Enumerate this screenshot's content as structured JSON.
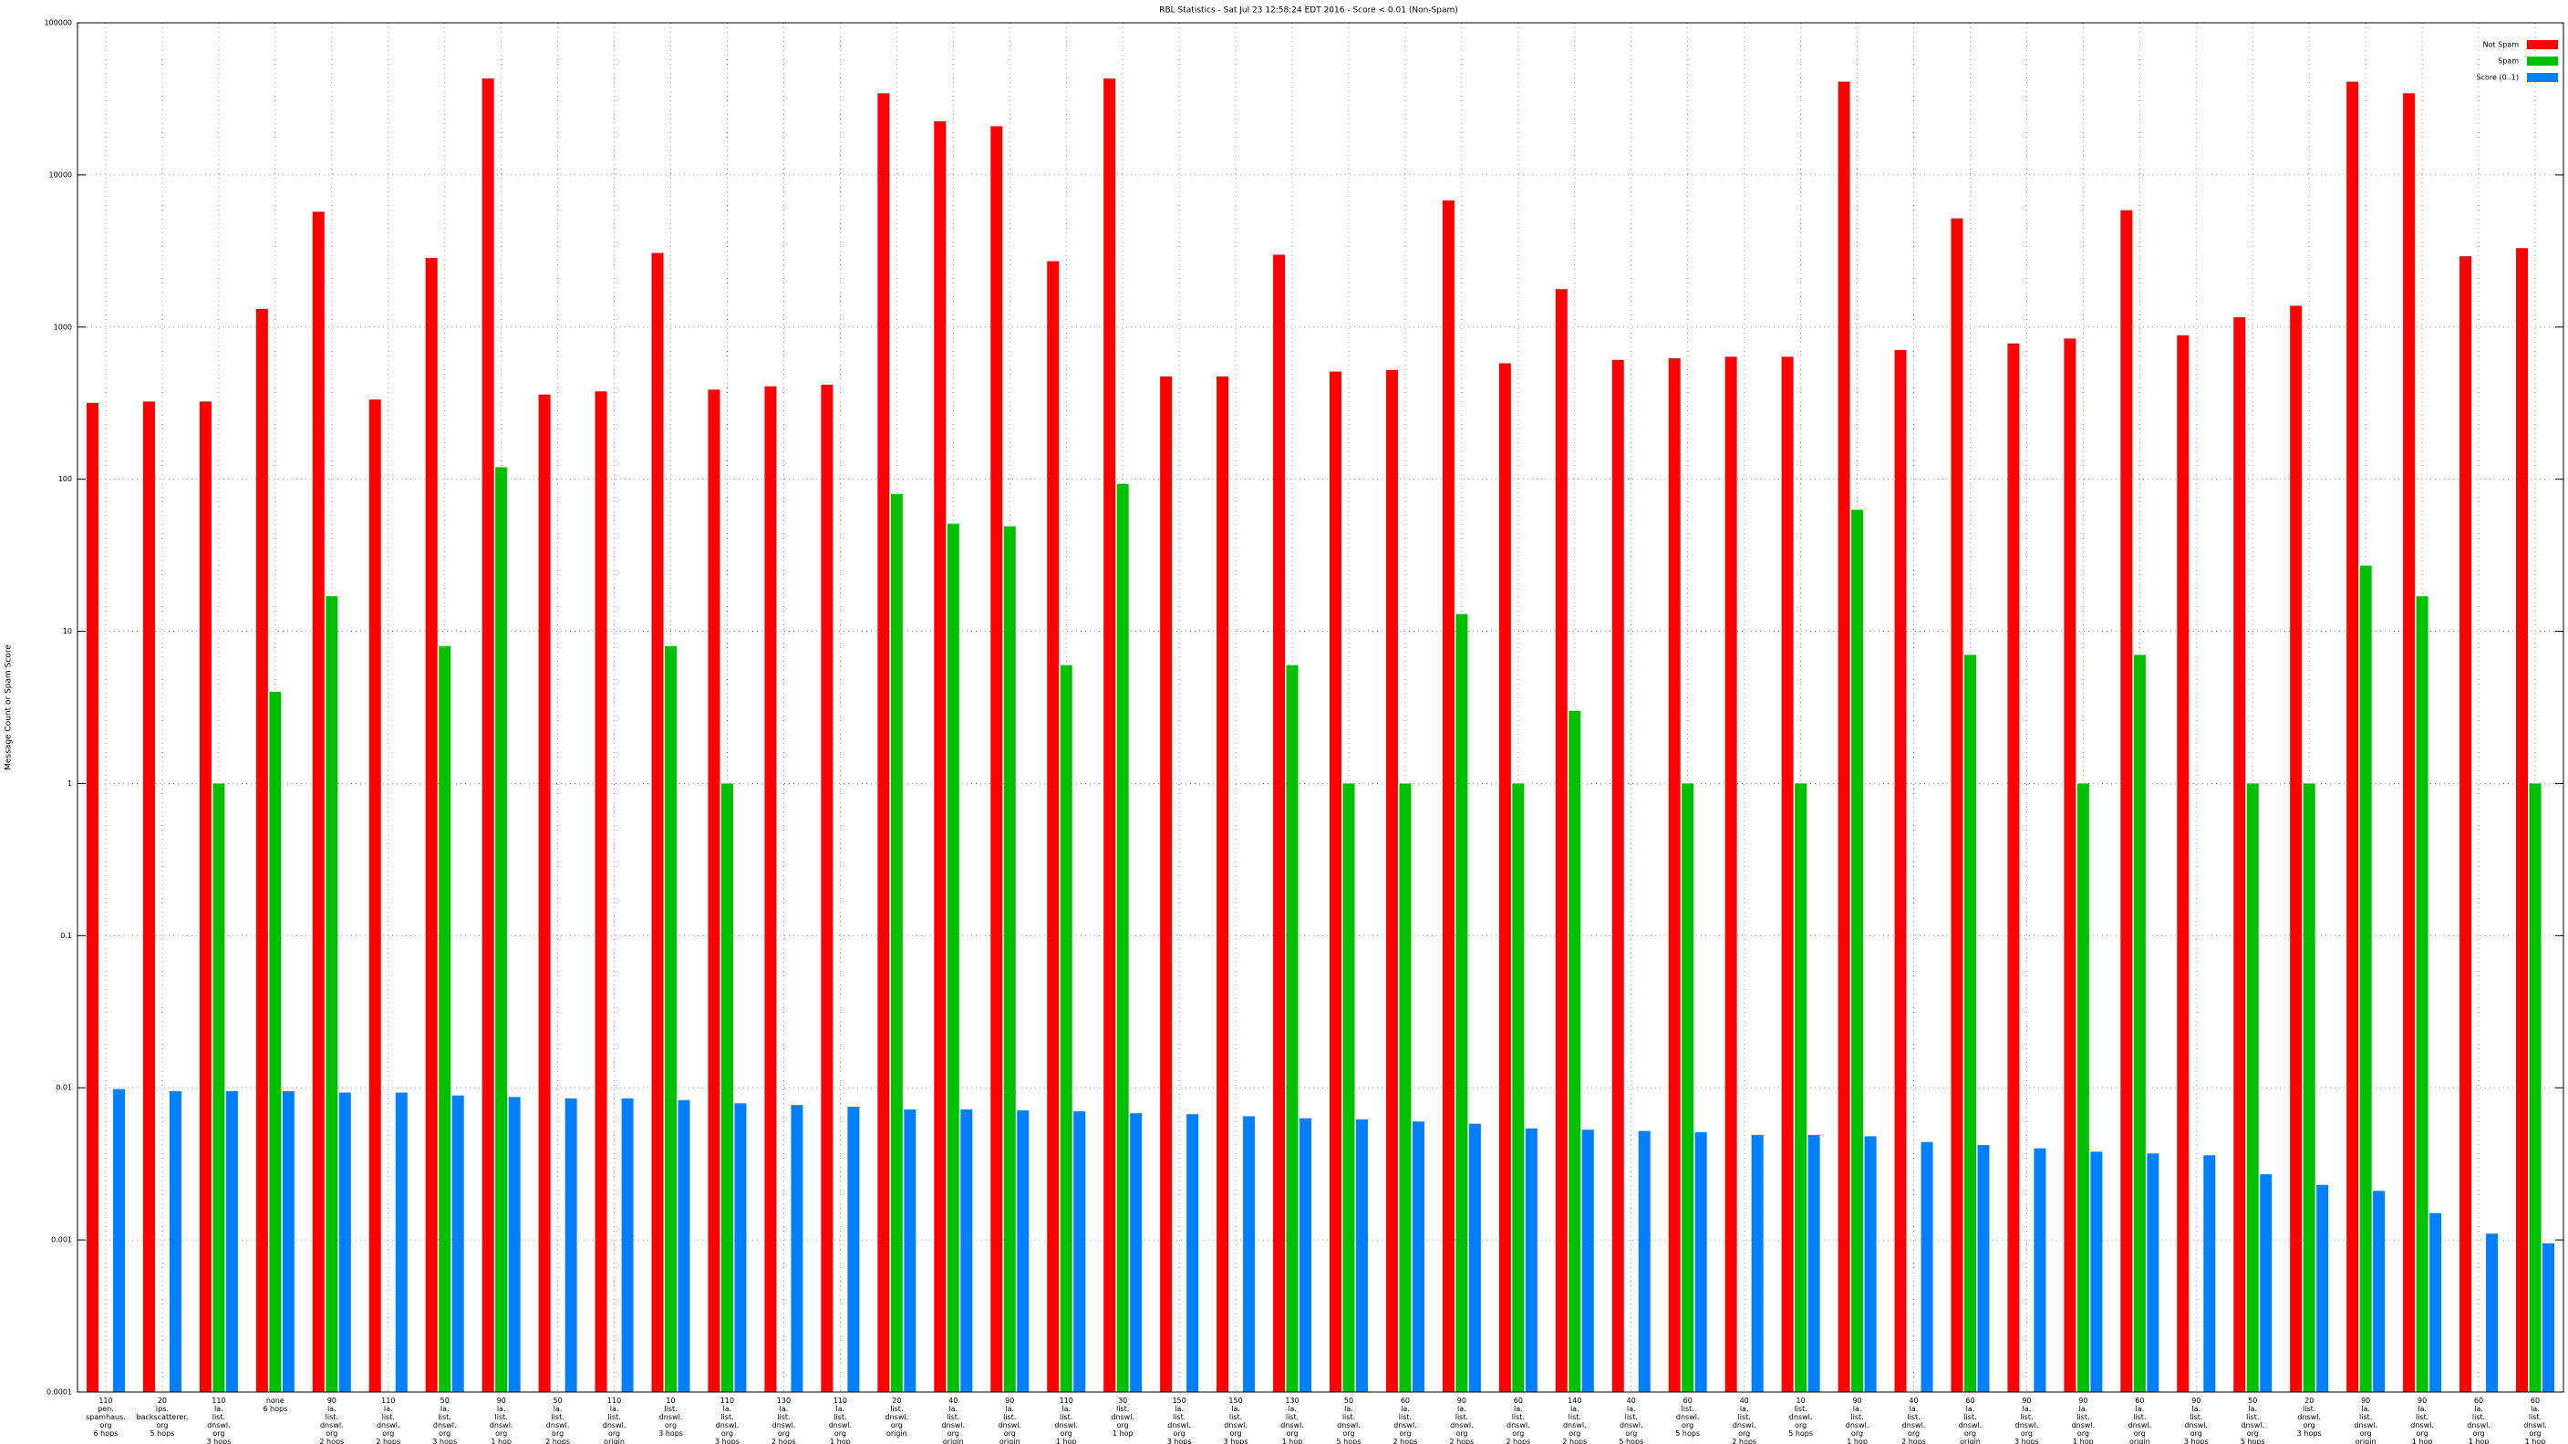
{
  "chart_data": {
    "type": "bar",
    "title": "RBL Statistics - Sat Jul 23 12:58:24 EDT 2016 - Score < 0.01 (Non-Spam)",
    "y_label": "Message Count or Spam Score",
    "categories": [
      "110\npen.\nspamhaus.\norg\n6 hops",
      "20\nips.\nbackscatterer.\norg\n5 hops",
      "110\nla.\nlist.\ndnswl.\norg\n3 hops",
      "none\n6 hops",
      "90\nla.\nlist.\ndnswl.\norg\n2 hops",
      "110\nla.\nlist.\ndnswl.\norg\n2 hops",
      "50\nla.\nlist.\ndnswl.\norg\n3 hops",
      "90\nla.\nlist.\ndnswl.\norg\n1 hop",
      "50\nla.\nlist.\ndnswl.\norg\n2 hops",
      "110\nla.\nlist.\ndnswl.\norg\norigin",
      "10\nlist.\ndnswl.\norg\n3 hops",
      "110\nla.\nlist.\ndnswl.\norg\n3 hops",
      "130\nla.\nlist.\ndnswl.\norg\n2 hops",
      "110\nla.\nlist.\ndnswl.\norg\n1 hop",
      "20\nlist.\ndnswl.\norg\norigin",
      "40\nla.\nlist.\ndnswl.\norg\norigin",
      "90\nla.\nlist.\ndnswl.\norg\norigin",
      "110\nla.\nlist.\ndnswl.\norg\n1 hop",
      "30\nlist.\ndnswl.\norg\n1 hop",
      "150\nla.\nlist.\ndnswl.\norg\n3 hops",
      "150\nla.\nlist.\ndnswl.\norg\n3 hops",
      "130\nla.\nlist.\ndnswl.\norg\n1 hop",
      "50\nla.\nlist.\ndnswl.\norg\n5 hops",
      "60\nla.\nlist.\ndnswl.\norg\n2 hops",
      "90\nla.\nlist.\ndnswl.\norg\n2 hops",
      "60\nla.\nlist.\ndnswl.\norg\n2 hops",
      "140\nla.\nlist.\ndnswl.\norg\n2 hops",
      "40\nla.\nlist.\ndnswl.\norg\n5 hops",
      "60\nlist.\ndnswl.\norg\n5 hops",
      "40\nla.\nlist.\ndnswl.\norg\n2 hops",
      "10\nlist.\ndnswl.\norg\n5 hops",
      "90\nla.\nlist.\ndnswl.\norg\n1 hop",
      "40\nla.\nlist.\ndnswl.\norg\n2 hops",
      "60\nla.\nlist.\ndnswl.\norg\norigin",
      "90\nla.\nlist.\ndnswl.\norg\n3 hops",
      "90\nla.\nlist.\ndnswl.\norg\n1 hop",
      "60\nla.\nlist.\ndnswl.\norg\norigin",
      "90\nla.\nlist.\ndnswl.\norg\n3 hops",
      "50\nla.\nlist.\ndnswl.\norg\n5 hops",
      "20\nlist.\ndnswl.\norg\n3 hops",
      "90\nla.\nlist.\ndnswl.\norg\norigin",
      "90\nla.\nlist.\ndnswl.\norg\n1 hop",
      "60\nla.\nlist.\ndnswl.\norg\n1 hop",
      "60\nla.\nlist.\ndnswl.\norg\n1 hop"
    ],
    "series": [
      {
        "name": "Not Spam",
        "color": "#ff0000",
        "values": [
          318,
          324,
          324,
          1315,
          5730,
          334,
          2850,
          43000,
          360,
          378,
          3070,
          388,
          408,
          418,
          34400,
          22500,
          20900,
          2710,
          43000,
          473,
          473,
          2990,
          510,
          523,
          6810,
          578,
          1775,
          608,
          623,
          638,
          638,
          41000,
          706,
          5180,
          780,
          841,
          5860,
          884,
          1160,
          1380,
          41000,
          34400,
          2920,
          3300
        ]
      },
      {
        "name": "Spam",
        "color": "#00c000",
        "values": [
          null,
          null,
          1,
          4,
          17,
          null,
          8,
          120,
          null,
          null,
          8,
          1,
          null,
          null,
          80,
          51,
          49,
          6,
          93,
          null,
          null,
          6,
          1,
          1,
          13,
          1,
          3,
          null,
          1,
          null,
          1,
          63,
          null,
          7,
          null,
          1,
          7,
          null,
          1,
          1,
          27,
          17,
          null,
          1
        ]
      },
      {
        "name": "Score (0..1)",
        "color": "#0080ff",
        "values": [
          0.0098,
          0.0095,
          0.0095,
          0.0095,
          0.0093,
          0.0093,
          0.0089,
          0.0087,
          0.0085,
          0.0085,
          0.0083,
          0.0079,
          0.0077,
          0.0075,
          0.0072,
          0.0072,
          0.0071,
          0.007,
          0.0068,
          0.0067,
          0.0065,
          0.0063,
          0.0062,
          0.006,
          0.0058,
          0.0054,
          0.0053,
          0.0052,
          0.0051,
          0.0049,
          0.0049,
          0.0048,
          0.0044,
          0.0042,
          0.004,
          0.0038,
          0.0037,
          0.0036,
          0.0027,
          0.0023,
          0.0021,
          0.0015,
          0.0011,
          0.00095
        ]
      }
    ],
    "ylim": [
      0.0001,
      100000
    ],
    "yticks": [
      0.0001,
      0.001,
      0.01,
      0.1,
      1,
      10,
      100,
      1000,
      10000,
      100000
    ],
    "log_scale": true,
    "grid": true,
    "legend_position": "upper right"
  }
}
